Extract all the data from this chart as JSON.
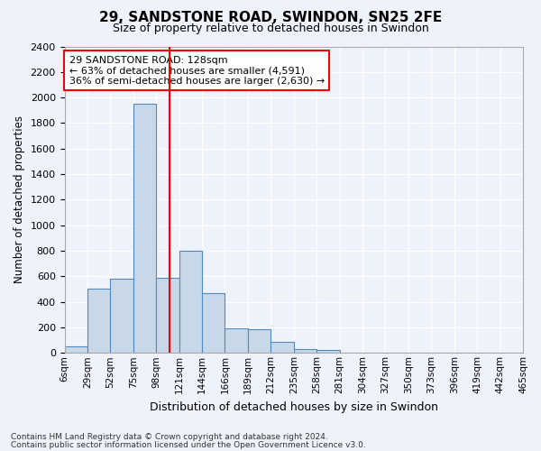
{
  "title": "29, SANDSTONE ROAD, SWINDON, SN25 2FE",
  "subtitle": "Size of property relative to detached houses in Swindon",
  "xlabel": "Distribution of detached houses by size in Swindon",
  "ylabel": "Number of detached properties",
  "footer_line1": "Contains HM Land Registry data © Crown copyright and database right 2024.",
  "footer_line2": "Contains public sector information licensed under the Open Government Licence v3.0.",
  "annotation_line1": "29 SANDSTONE ROAD: 128sqm",
  "annotation_line2": "← 63% of detached houses are smaller (4,591)",
  "annotation_line3": "36% of semi-detached houses are larger (2,630) →",
  "bin_labels": [
    "6sqm",
    "29sqm",
    "52sqm",
    "75sqm",
    "98sqm",
    "121sqm",
    "144sqm",
    "166sqm",
    "189sqm",
    "212sqm",
    "235sqm",
    "258sqm",
    "281sqm",
    "304sqm",
    "327sqm",
    "350sqm",
    "373sqm",
    "396sqm",
    "419sqm",
    "442sqm",
    "465sqm"
  ],
  "bar_values": [
    50,
    500,
    580,
    1950,
    590,
    800,
    470,
    195,
    185,
    85,
    30,
    20,
    5,
    0,
    0,
    0,
    0,
    0,
    0,
    0
  ],
  "bar_color": "#c8d8e8",
  "bar_edge_color": "#5588bb",
  "vline_color": "red",
  "ylim": [
    0,
    2400
  ],
  "yticks": [
    0,
    200,
    400,
    600,
    800,
    1000,
    1200,
    1400,
    1600,
    1800,
    2000,
    2200,
    2400
  ],
  "background_color": "#eef2fb",
  "grid_color": "#ffffff",
  "annotation_box_color": "white",
  "annotation_box_edge": "red"
}
